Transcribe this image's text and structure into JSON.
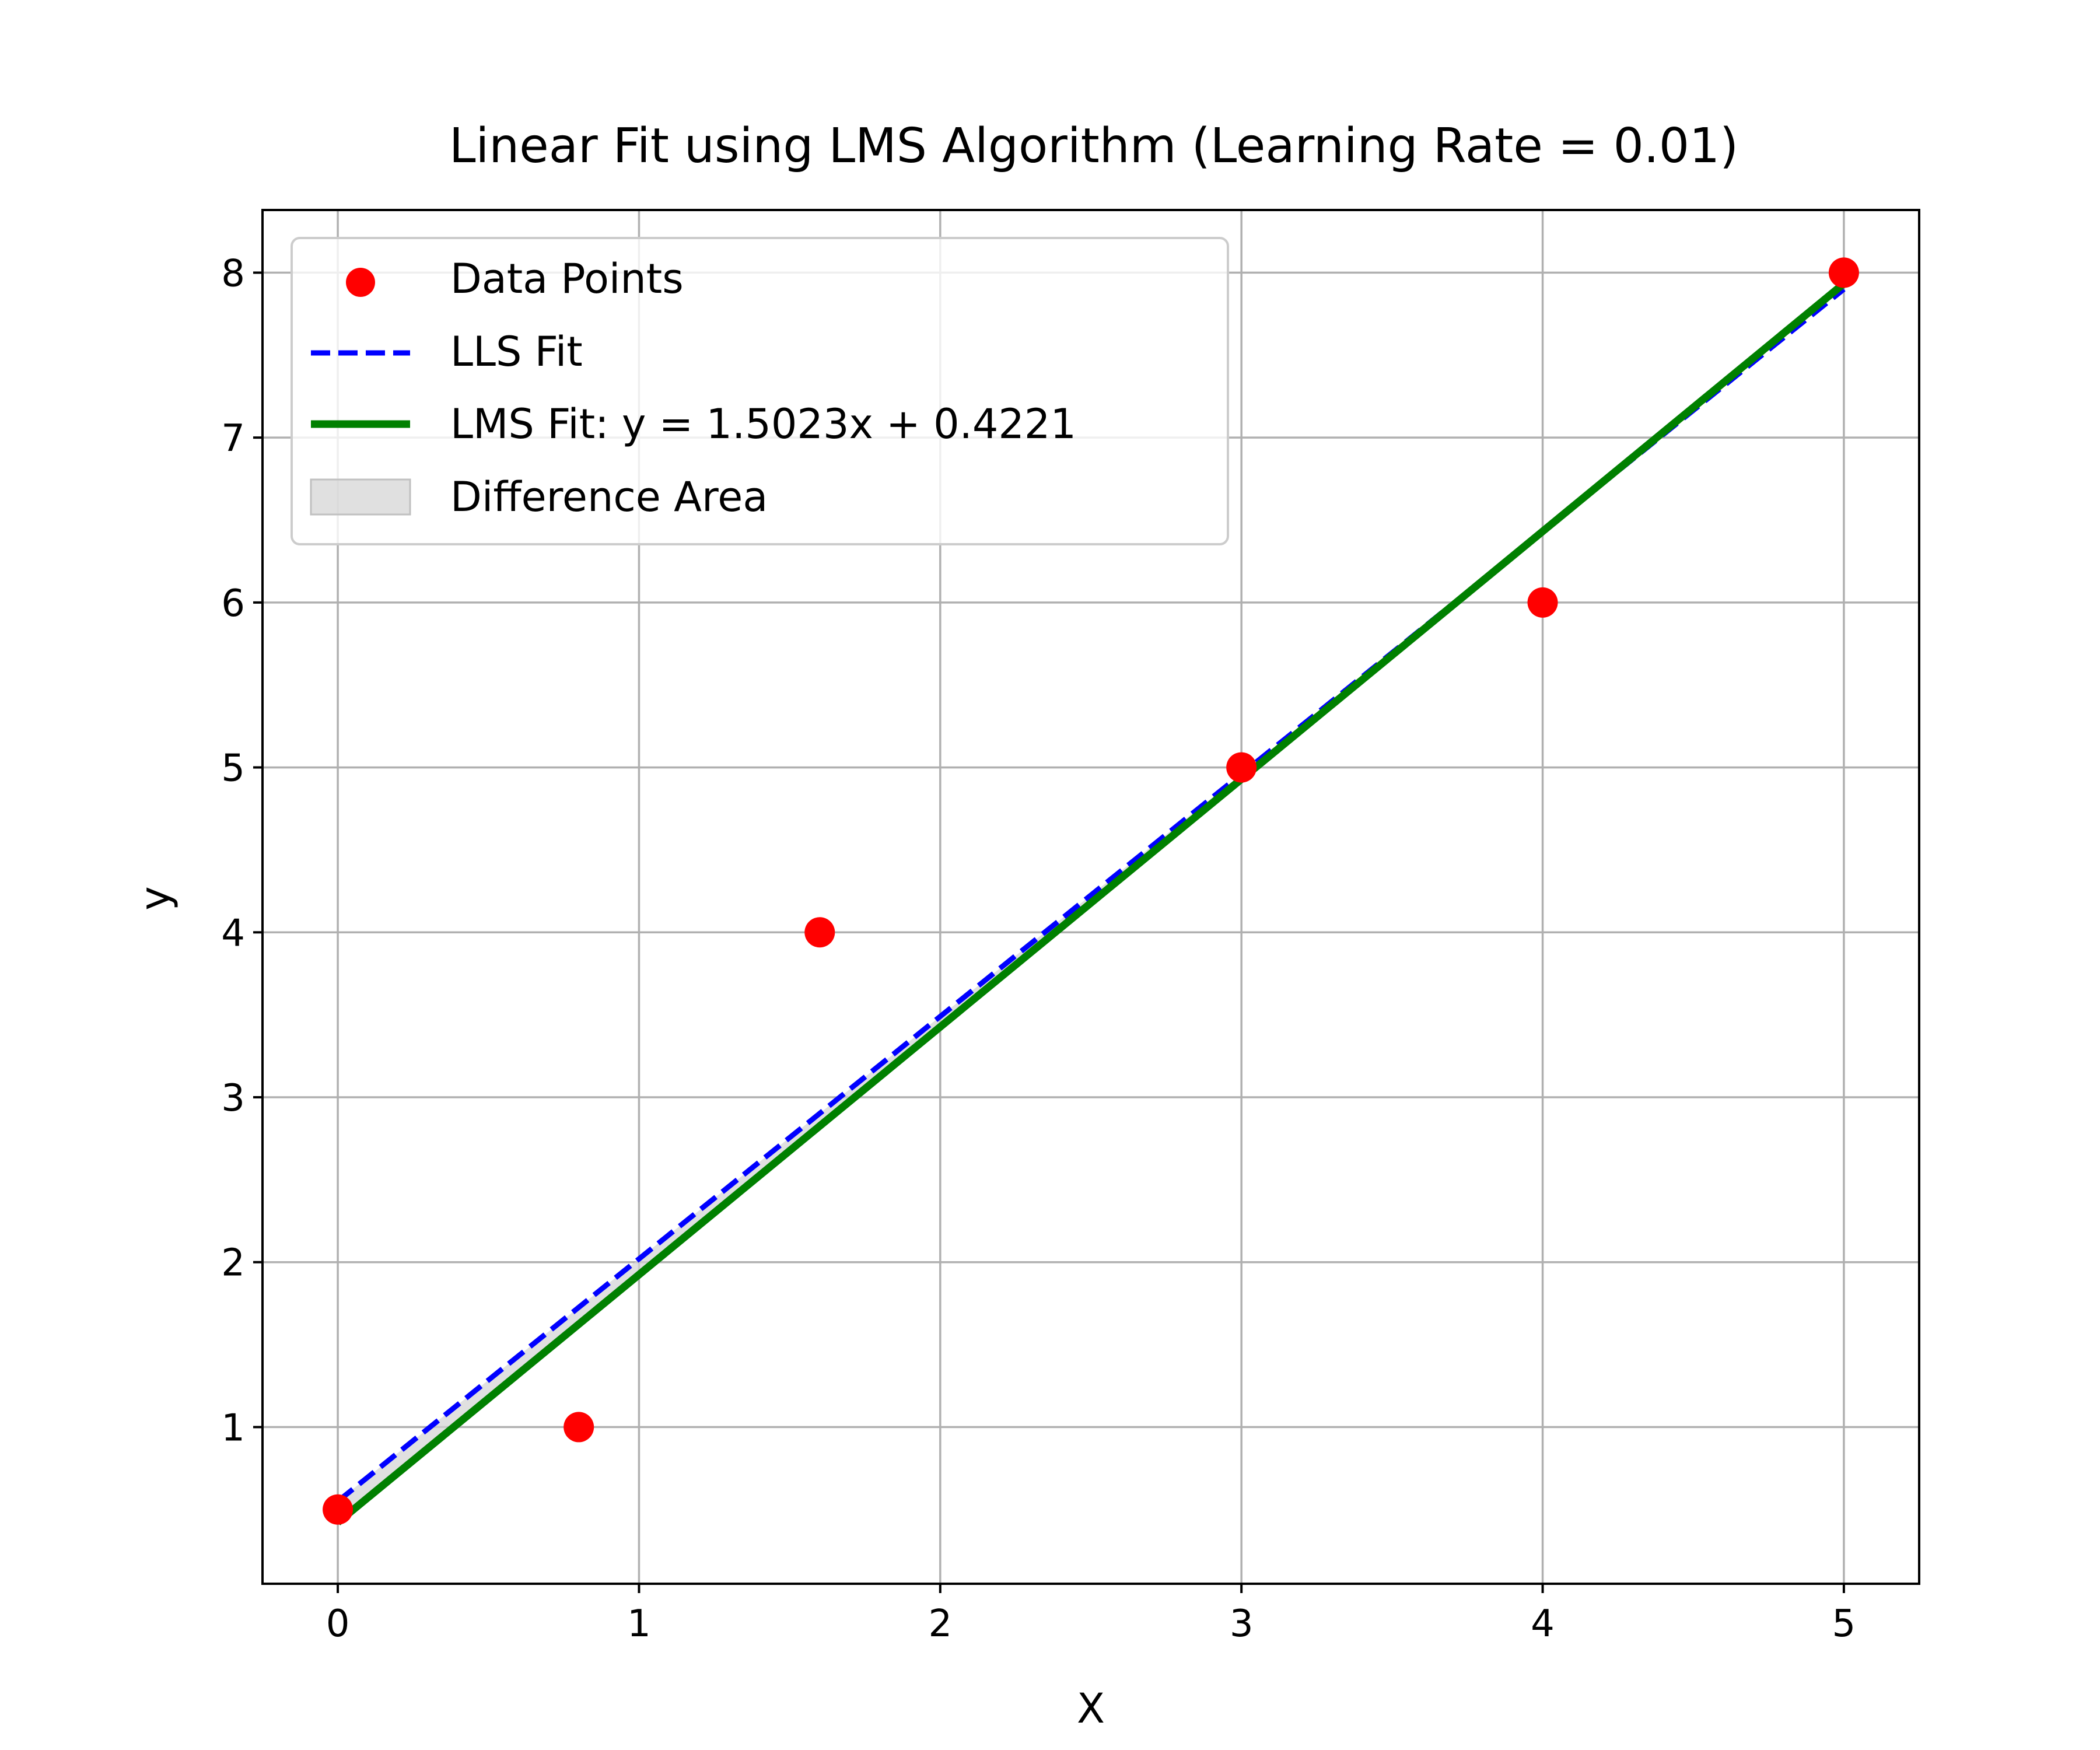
{
  "chart_data": {
    "type": "scatter",
    "title": "Linear Fit using LMS Algorithm (Learning Rate = 0.01)",
    "xlabel": "X",
    "ylabel": "y",
    "xlim": [
      -0.25,
      5.25
    ],
    "ylim": [
      0.05,
      8.38
    ],
    "x_ticks": [
      0,
      1,
      2,
      3,
      4,
      5
    ],
    "y_ticks": [
      1,
      2,
      3,
      4,
      5,
      6,
      7,
      8
    ],
    "grid": true,
    "legend_position": "top-left",
    "series": [
      {
        "name": "Data Points",
        "kind": "scatter",
        "color": "#ff0000",
        "x": [
          0.0,
          0.8,
          1.6,
          3.0,
          4.0,
          5.0
        ],
        "y": [
          0.5,
          1.0,
          4.0,
          5.0,
          6.0,
          8.0
        ]
      },
      {
        "name": "LLS Fit",
        "kind": "line",
        "style": "dashed",
        "color": "#0000ff",
        "x": [
          0,
          5
        ],
        "y": [
          0.55,
          7.9
        ]
      },
      {
        "name": "LMS Fit: y = 1.5023x + 0.4221",
        "kind": "line",
        "style": "solid",
        "color": "#008000",
        "slope": 1.5023,
        "intercept": 0.4221,
        "x": [
          0,
          5
        ],
        "y": [
          0.4221,
          7.9336
        ]
      },
      {
        "name": "Difference Area",
        "kind": "fill_between",
        "color": "#d3d3d3"
      }
    ]
  }
}
